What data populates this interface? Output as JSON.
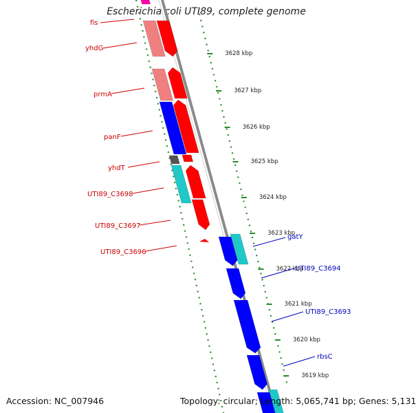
{
  "title": "Escherichia coli UTI89, complete genome",
  "footer": {
    "accession": "Accession: NC_007946",
    "summary": "Topology: circular; Length: 5,065,741 bp; Genes: 5,131"
  },
  "colors": {
    "backbone": "#8a8a8a",
    "tick": "#2a8a2a",
    "left_label": "#cc0000",
    "right_label": "#0000bb",
    "forward_cds": "#ff0000",
    "forward_cds_light": "#f08080",
    "reverse_cds": "#0000ff",
    "reverse_cds_alt": "#20c8c8",
    "gray_feature": "#555555",
    "magenta_feature": "#ff00aa"
  },
  "ruler": [
    {
      "label": "3628 kbp"
    },
    {
      "label": "3627 kbp"
    },
    {
      "label": "3626 kbp"
    },
    {
      "label": "3625 kbp"
    },
    {
      "label": "3624 kbp"
    },
    {
      "label": "3623 kbp"
    },
    {
      "label": "3622 kbp"
    },
    {
      "label": "3621 kbp"
    },
    {
      "label": "3620 kbp"
    },
    {
      "label": "3619 kbp"
    }
  ],
  "genes_left": [
    {
      "name": "fis"
    },
    {
      "name": "yhdG"
    },
    {
      "name": "prmA"
    },
    {
      "name": "panF"
    },
    {
      "name": "yhdT"
    },
    {
      "name": "UTI89_C3698"
    },
    {
      "name": "UTI89_C3697"
    },
    {
      "name": "UTI89_C3696"
    }
  ],
  "genes_right": [
    {
      "name": "gatY"
    },
    {
      "name": "UTI89_C3694"
    },
    {
      "name": "UTI89_C3693"
    },
    {
      "name": "rbsC"
    }
  ]
}
